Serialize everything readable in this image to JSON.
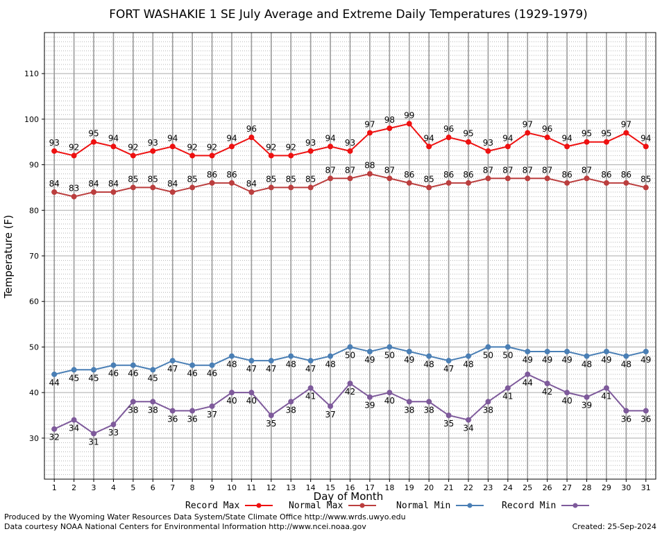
{
  "chart_data": {
    "type": "line",
    "title": "FORT WASHAKIE 1 SE July Average and Extreme Daily Temperatures (1929-1979)",
    "xlabel": "Day of Month",
    "ylabel": "Temperature (F)",
    "ylim": [
      21,
      119
    ],
    "yticks": [
      30,
      40,
      50,
      60,
      70,
      80,
      90,
      100,
      110
    ],
    "grid": true,
    "legend_position": "bottom",
    "x": [
      1,
      2,
      3,
      4,
      5,
      6,
      7,
      8,
      9,
      10,
      11,
      12,
      13,
      14,
      15,
      16,
      17,
      18,
      19,
      20,
      21,
      22,
      23,
      24,
      25,
      26,
      27,
      28,
      29,
      30,
      31
    ],
    "series": [
      {
        "name": "Record Max",
        "color": "#ee1111",
        "label_pos": "above",
        "values": [
          93,
          92,
          95,
          94,
          92,
          93,
          94,
          92,
          92,
          94,
          96,
          92,
          92,
          93,
          94,
          93,
          97,
          98,
          99,
          94,
          96,
          95,
          93,
          94,
          97,
          96,
          94,
          95,
          95,
          97,
          94
        ]
      },
      {
        "name": "Normal Max",
        "color": "#bb3e3e",
        "label_pos": "above",
        "values": [
          84,
          83,
          84,
          84,
          85,
          85,
          84,
          85,
          86,
          86,
          84,
          85,
          85,
          85,
          87,
          87,
          88,
          87,
          86,
          85,
          86,
          86,
          87,
          87,
          87,
          87,
          86,
          87,
          86,
          86,
          85
        ]
      },
      {
        "name": "Normal Min",
        "color": "#4a7fb5",
        "label_pos": "below",
        "values": [
          44,
          45,
          45,
          46,
          46,
          45,
          47,
          46,
          46,
          48,
          47,
          47,
          48,
          47,
          48,
          50,
          49,
          50,
          49,
          48,
          47,
          48,
          50,
          50,
          49,
          49,
          49,
          48,
          49,
          48,
          49
        ]
      },
      {
        "name": "Record Min",
        "color": "#7e5a9b",
        "label_pos": "below",
        "values": [
          32,
          34,
          31,
          33,
          38,
          38,
          36,
          36,
          37,
          40,
          40,
          35,
          38,
          41,
          37,
          42,
          39,
          40,
          38,
          38,
          35,
          34,
          38,
          41,
          44,
          42,
          40,
          39,
          41,
          36,
          36
        ]
      }
    ]
  },
  "footer": {
    "producer": "Produced by the Wyoming Water Resources Data System/State Climate Office http://www.wrds.uwyo.edu",
    "source": "Data courtesy NOAA National Centers for Environmental Information http://www.ncei.noaa.gov",
    "created": "Created: 25-Sep-2024"
  }
}
